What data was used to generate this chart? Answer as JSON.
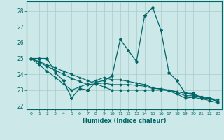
{
  "xlabel": "Humidex (Indice chaleur)",
  "bg_color": "#cce8e8",
  "grid_color": "#aacccc",
  "line_color": "#006666",
  "xlim": [
    -0.5,
    23.5
  ],
  "ylim": [
    21.8,
    28.6
  ],
  "yticks": [
    22,
    23,
    24,
    25,
    26,
    27,
    28
  ],
  "xticks": [
    0,
    1,
    2,
    3,
    4,
    5,
    6,
    7,
    8,
    9,
    10,
    11,
    12,
    13,
    14,
    15,
    16,
    17,
    18,
    19,
    20,
    21,
    22,
    23
  ],
  "series": [
    [
      25.0,
      25.0,
      25.0,
      24.1,
      23.6,
      22.5,
      23.1,
      23.0,
      23.5,
      23.6,
      23.9,
      26.2,
      25.5,
      24.8,
      27.7,
      28.2,
      26.8,
      24.1,
      23.6,
      22.8,
      22.8,
      22.5,
      22.5,
      22.3
    ],
    [
      25.0,
      24.8,
      24.6,
      24.4,
      24.2,
      24.0,
      23.8,
      23.6,
      23.4,
      23.2,
      23.0,
      23.0,
      23.0,
      23.0,
      23.0,
      23.0,
      23.0,
      23.0,
      22.9,
      22.8,
      22.7,
      22.6,
      22.5,
      22.4
    ],
    [
      25.0,
      24.75,
      24.5,
      24.25,
      24.0,
      23.75,
      23.55,
      23.35,
      23.4,
      23.45,
      23.35,
      23.35,
      23.35,
      23.3,
      23.25,
      23.1,
      23.1,
      23.0,
      22.85,
      22.65,
      22.65,
      22.55,
      22.45,
      22.3
    ],
    [
      25.0,
      24.6,
      24.2,
      23.8,
      23.4,
      23.0,
      23.2,
      23.4,
      23.6,
      23.8,
      23.65,
      23.65,
      23.55,
      23.45,
      23.35,
      23.15,
      23.05,
      22.95,
      22.75,
      22.5,
      22.55,
      22.45,
      22.35,
      22.2
    ]
  ]
}
